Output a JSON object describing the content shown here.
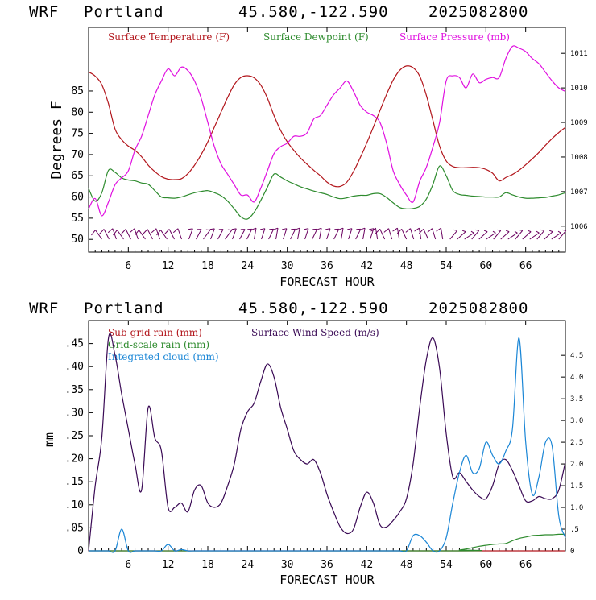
{
  "colors": {
    "temperature": "#b2161c",
    "dewpoint": "#2e8b2e",
    "pressure": "#e010e0",
    "wind_barb": "#6a005f",
    "subgrid_rain": "#b2161c",
    "gridscale_rain": "#2e8b2e",
    "wind_speed": "#3a0a55",
    "cloud": "#1a86d6",
    "axes": "#000000"
  },
  "chart_data": [
    {
      "type": "line",
      "header": {
        "model": "WRF",
        "location": "Portland",
        "coords": "45.580,-122.590",
        "run": "2025082800"
      },
      "xlabel": "FORECAST HOUR",
      "ylabel": "Degrees F",
      "xlim": [
        0,
        72
      ],
      "ylim": [
        47,
        100
      ],
      "y2lim": [
        1005.25,
        1011.75
      ],
      "xticks": [
        6,
        12,
        18,
        24,
        30,
        36,
        42,
        48,
        54,
        60,
        66
      ],
      "xtick_labels": [
        "6",
        "12",
        "18",
        "24",
        "30",
        "36",
        "42",
        "48",
        "54",
        "60",
        "66"
      ],
      "yticks": [
        50,
        55,
        60,
        65,
        70,
        75,
        80,
        85
      ],
      "ytick_labels": [
        "50",
        "55",
        "60",
        "65",
        "70",
        "75",
        "80",
        "85"
      ],
      "y2ticks": [
        1006,
        1007,
        1008,
        1009,
        1010,
        1011
      ],
      "y2tick_labels": [
        "1006",
        "1007",
        "1008",
        "1009",
        "1010",
        "1011"
      ],
      "series": [
        {
          "name": "Surface Temperature (F)",
          "axis": "left",
          "color": "#b2161c",
          "x": [
            0,
            1,
            2,
            3,
            4,
            5,
            6,
            7,
            8,
            9,
            10,
            11,
            12,
            13,
            14,
            15,
            16,
            17,
            18,
            19,
            20,
            21,
            22,
            23,
            24,
            25,
            26,
            27,
            28,
            29,
            30,
            31,
            32,
            33,
            34,
            35,
            36,
            37,
            38,
            39,
            40,
            41,
            42,
            43,
            44,
            45,
            46,
            47,
            48,
            49,
            50,
            51,
            52,
            53,
            54,
            55,
            56,
            57,
            58,
            59,
            60,
            61,
            62,
            63,
            64,
            65,
            66,
            67,
            68,
            69,
            70,
            71,
            72
          ],
          "y": [
            89.5,
            88.5,
            86.5,
            82,
            76,
            73.5,
            72,
            71,
            69.5,
            67.5,
            66,
            64.8,
            64.2,
            64.1,
            64.3,
            65.5,
            67.5,
            70,
            73,
            76.5,
            80,
            83.5,
            86.5,
            88.2,
            88.6,
            88.1,
            86.4,
            83.3,
            79.2,
            75.7,
            73,
            71,
            69.2,
            67.7,
            66.3,
            65,
            63.5,
            62.6,
            62.5,
            63.5,
            66,
            69.2,
            72.7,
            76.5,
            80.4,
            84.2,
            87.6,
            89.9,
            90.9,
            90.5,
            88.5,
            84,
            78,
            72,
            68.5,
            67.2,
            66.9,
            66.9,
            67,
            66.9,
            66.5,
            65.6,
            63.8,
            64.6,
            65.3,
            66.3,
            67.6,
            69,
            70.5,
            72.2,
            73.8,
            75.2,
            76.4
          ]
        },
        {
          "name": "Surface Dewpoint (F)",
          "axis": "left",
          "color": "#2e8b2e",
          "x": [
            0,
            1,
            2,
            3,
            4,
            5,
            6,
            7,
            8,
            9,
            10,
            11,
            12,
            13,
            14,
            15,
            16,
            17,
            18,
            19,
            20,
            21,
            22,
            23,
            24,
            25,
            26,
            27,
            28,
            29,
            30,
            31,
            32,
            33,
            34,
            35,
            36,
            37,
            38,
            39,
            40,
            41,
            42,
            43,
            44,
            45,
            46,
            47,
            48,
            49,
            50,
            51,
            52,
            53,
            54,
            55,
            56,
            57,
            58,
            59,
            60,
            61,
            62,
            63,
            64,
            65,
            66,
            67,
            68,
            69,
            70,
            71,
            72
          ],
          "y": [
            62,
            59,
            61,
            66.3,
            65.8,
            64.5,
            64,
            63.8,
            63.3,
            63,
            61.5,
            60,
            59.8,
            59.7,
            60,
            60.5,
            61,
            61.3,
            61.5,
            61,
            60.3,
            59,
            57.2,
            55.3,
            54.8,
            56.4,
            59.2,
            62.3,
            65.4,
            64.7,
            63.8,
            63.1,
            62.4,
            61.9,
            61.4,
            61,
            60.6,
            60,
            59.6,
            59.8,
            60.2,
            60.4,
            60.4,
            60.8,
            60.8,
            59.9,
            58.6,
            57.5,
            57.2,
            57.3,
            57.8,
            59.5,
            63,
            67.3,
            65,
            61.5,
            60.6,
            60.4,
            60.2,
            60.1,
            60.0,
            60.0,
            60.0,
            61.0,
            60.5,
            60.0,
            59.7,
            59.7,
            59.8,
            59.9,
            60.2,
            60.5,
            61.0
          ]
        },
        {
          "name": "Surface Pressure (mb)",
          "axis": "right",
          "color": "#e010e0",
          "x": [
            0,
            1,
            2,
            3,
            4,
            5,
            6,
            7,
            8,
            9,
            10,
            11,
            12,
            13,
            14,
            15,
            16,
            17,
            18,
            19,
            20,
            21,
            22,
            23,
            24,
            25,
            26,
            27,
            28,
            29,
            30,
            31,
            32,
            33,
            34,
            35,
            36,
            37,
            38,
            39,
            40,
            41,
            42,
            43,
            44,
            45,
            46,
            47,
            48,
            49,
            50,
            51,
            52,
            53,
            54,
            55,
            56,
            57,
            58,
            59,
            60,
            61,
            62,
            63,
            64,
            65,
            66,
            67,
            68,
            69,
            70,
            71,
            72
          ],
          "y": [
            1006.5,
            1006.8,
            1006.3,
            1006.7,
            1007.2,
            1007.4,
            1007.6,
            1008.2,
            1008.6,
            1009.2,
            1009.8,
            1010.2,
            1010.55,
            1010.35,
            1010.6,
            1010.5,
            1010.2,
            1009.7,
            1009.0,
            1008.3,
            1007.8,
            1007.5,
            1007.2,
            1006.9,
            1006.9,
            1006.7,
            1007.1,
            1007.6,
            1008.1,
            1008.3,
            1008.4,
            1008.6,
            1008.6,
            1008.7,
            1009.1,
            1009.2,
            1009.5,
            1009.8,
            1010.0,
            1010.2,
            1009.9,
            1009.5,
            1009.3,
            1009.2,
            1009.0,
            1008.4,
            1007.6,
            1007.2,
            1006.9,
            1006.7,
            1007.3,
            1007.7,
            1008.3,
            1009.0,
            1010.2,
            1010.35,
            1010.3,
            1010.0,
            1010.4,
            1010.15,
            1010.25,
            1010.3,
            1010.3,
            1010.85,
            1011.2,
            1011.15,
            1011.05,
            1010.85,
            1010.7,
            1010.45,
            1010.2,
            1010.0,
            1009.9
          ]
        }
      ],
      "wind_barbs": {
        "color": "#6a005f",
        "count": 64
      }
    },
    {
      "type": "line",
      "header": {
        "model": "WRF",
        "location": "Portland",
        "coords": "45.580,-122.590",
        "run": "2025082800"
      },
      "xlabel": "FORECAST HOUR",
      "ylabel": "mm",
      "xlim": [
        0,
        72
      ],
      "ylim": [
        0,
        0.5
      ],
      "y2lim": [
        0,
        5.3
      ],
      "xticks": [
        6,
        12,
        18,
        24,
        30,
        36,
        42,
        48,
        54,
        60,
        66
      ],
      "xtick_labels": [
        "6",
        "12",
        "18",
        "24",
        "30",
        "36",
        "42",
        "48",
        "54",
        "60",
        "66"
      ],
      "yticks": [
        0,
        0.05,
        0.1,
        0.15,
        0.2,
        0.25,
        0.3,
        0.35,
        0.4,
        0.45
      ],
      "ytick_labels": [
        "0",
        ".05",
        ".10",
        ".15",
        ".20",
        ".25",
        ".30",
        ".35",
        ".40",
        ".45"
      ],
      "y2ticks": [
        0,
        0.5,
        1.0,
        1.5,
        2.0,
        2.5,
        3.0,
        3.5,
        4.0,
        4.5
      ],
      "y2tick_labels": [
        "0",
        ".5",
        "1.0",
        "1.5",
        "2.0",
        "2.5",
        "3.0",
        "3.5",
        "4.0",
        "4.5"
      ],
      "series": [
        {
          "name": "Sub-grid rain (mm)",
          "axis": "left",
          "color": "#b2161c",
          "x": [
            0,
            72
          ],
          "y": [
            0,
            0
          ]
        },
        {
          "name": "Grid-scale rain (mm)",
          "axis": "left",
          "color": "#2e8b2e",
          "x": [
            0,
            55,
            56,
            57,
            58,
            59,
            60,
            61,
            62,
            63,
            64,
            65,
            66,
            67,
            68,
            69,
            70,
            71,
            72
          ],
          "y": [
            0,
            0,
            0.002,
            0.004,
            0.007,
            0.01,
            0.012,
            0.014,
            0.015,
            0.016,
            0.022,
            0.027,
            0.03,
            0.033,
            0.034,
            0.035,
            0.035,
            0.036,
            0.036
          ]
        },
        {
          "name": "Surface Wind Speed (m/s)",
          "axis": "right",
          "color": "#3a0a55",
          "x": [
            0,
            1,
            2,
            3,
            4,
            5,
            6,
            7,
            8,
            9,
            10,
            11,
            12,
            13,
            14,
            15,
            16,
            17,
            18,
            19,
            20,
            21,
            22,
            23,
            24,
            25,
            26,
            27,
            28,
            29,
            30,
            31,
            32,
            33,
            34,
            35,
            36,
            37,
            38,
            39,
            40,
            41,
            42,
            43,
            44,
            45,
            46,
            47,
            48,
            49,
            50,
            51,
            52,
            53,
            54,
            55,
            56,
            57,
            58,
            59,
            60,
            61,
            62,
            63,
            64,
            65,
            66,
            67,
            68,
            69,
            70,
            71,
            72
          ],
          "y": [
            0.0,
            1.5,
            2.6,
            4.9,
            4.5,
            3.6,
            2.8,
            2.0,
            1.4,
            3.3,
            2.6,
            2.3,
            1.0,
            1.0,
            1.1,
            0.9,
            1.4,
            1.5,
            1.1,
            1.0,
            1.1,
            1.5,
            2.0,
            2.8,
            3.2,
            3.4,
            3.9,
            4.3,
            4.0,
            3.3,
            2.8,
            2.3,
            2.1,
            2.0,
            2.1,
            1.8,
            1.3,
            0.9,
            0.55,
            0.4,
            0.5,
            1.0,
            1.35,
            1.1,
            0.6,
            0.55,
            0.7,
            0.9,
            1.2,
            2.0,
            3.3,
            4.4,
            4.9,
            4.2,
            2.7,
            1.7,
            1.8,
            1.6,
            1.4,
            1.25,
            1.2,
            1.5,
            2.0,
            2.1,
            1.85,
            1.5,
            1.15,
            1.15,
            1.25,
            1.2,
            1.2,
            1.4,
            2.05
          ]
        },
        {
          "name": "Integrated cloud (mm)",
          "axis": "right",
          "color": "#1a86d6",
          "x": [
            0,
            1,
            2,
            3,
            4,
            5,
            6,
            7,
            8,
            9,
            10,
            11,
            12,
            13,
            14,
            15,
            16,
            17,
            18,
            19,
            20,
            21,
            22,
            23,
            24,
            25,
            26,
            27,
            28,
            29,
            30,
            31,
            32,
            33,
            34,
            35,
            36,
            37,
            38,
            39,
            40,
            41,
            42,
            43,
            44,
            45,
            46,
            47,
            48,
            49,
            50,
            51,
            52,
            53,
            54,
            55,
            56,
            57,
            58,
            59,
            60,
            61,
            62,
            63,
            64,
            65,
            66,
            67,
            68,
            69,
            70,
            71,
            72
          ],
          "y": [
            0,
            0,
            0,
            0,
            0,
            0.5,
            0,
            0,
            0,
            0,
            0,
            0,
            0.15,
            0,
            0.03,
            0,
            0,
            0,
            0,
            0,
            0,
            0,
            0,
            0,
            0,
            0,
            0,
            0,
            0,
            0,
            0,
            0,
            0,
            0,
            0,
            0,
            0,
            0,
            0,
            0,
            0,
            0,
            0,
            0,
            0,
            0,
            0,
            0,
            0,
            0.35,
            0.35,
            0.2,
            0,
            0,
            0.3,
            1.1,
            1.8,
            2.2,
            1.8,
            1.9,
            2.5,
            2.2,
            2.0,
            2.3,
            2.8,
            4.9,
            2.5,
            1.3,
            1.7,
            2.5,
            2.4,
            0.8,
            0.3
          ]
        }
      ]
    }
  ]
}
